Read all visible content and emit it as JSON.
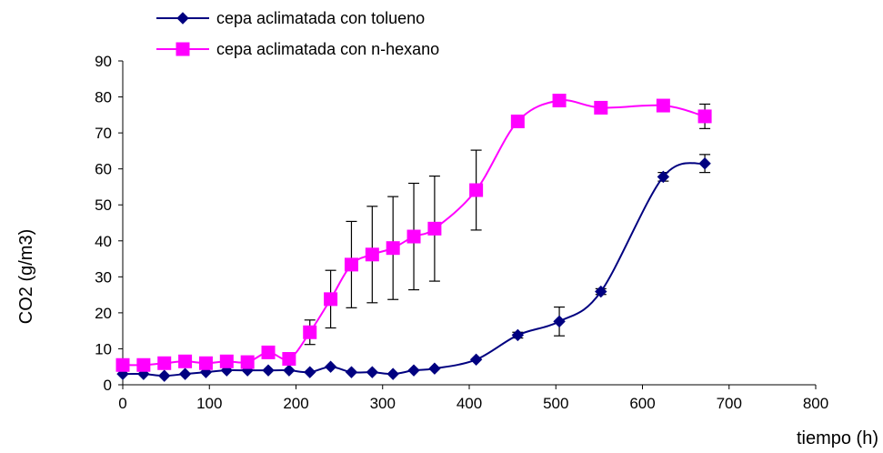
{
  "chart_data": {
    "type": "line",
    "title": "",
    "xlabel": "tiempo (h)",
    "ylabel": "CO2 (g/m3)",
    "xlim": [
      0,
      800
    ],
    "ylim": [
      0,
      90
    ],
    "x_ticks": [
      0,
      100,
      200,
      300,
      400,
      500,
      600,
      700,
      800
    ],
    "y_ticks": [
      0,
      10,
      20,
      30,
      40,
      50,
      60,
      70,
      80,
      90
    ],
    "grid": false,
    "legend_position": "top-left",
    "smooth": true,
    "series": [
      {
        "name": "cepa aclimatada con tolueno",
        "color": "#000080",
        "marker": "diamond",
        "x": [
          0,
          24,
          48,
          72,
          96,
          120,
          144,
          168,
          192,
          216,
          240,
          264,
          288,
          312,
          336,
          360,
          408,
          456,
          504,
          552,
          624,
          672
        ],
        "y": [
          3,
          3,
          2.5,
          3,
          3.5,
          4,
          4,
          4,
          4,
          3.5,
          5,
          3.5,
          3.5,
          3,
          4,
          4.5,
          7,
          13.8,
          17.6,
          25.9,
          57.8,
          61.5
        ],
        "error": [
          0,
          0,
          0,
          0,
          0,
          0,
          0,
          0,
          0,
          0,
          0,
          0,
          0,
          0,
          0,
          0,
          0,
          0.8,
          4.0,
          0.8,
          1.2,
          2.5
        ]
      },
      {
        "name": "cepa aclimatada con n-hexano",
        "color": "#ff00ff",
        "marker": "square",
        "x": [
          0,
          24,
          48,
          72,
          96,
          120,
          144,
          168,
          192,
          216,
          240,
          264,
          288,
          312,
          336,
          360,
          408,
          456,
          504,
          552,
          624,
          672
        ],
        "y": [
          5.5,
          5.5,
          6,
          6.5,
          6,
          6.5,
          6.3,
          9,
          7.2,
          14.6,
          23.8,
          33.4,
          36.2,
          38,
          41.2,
          43.4,
          54.1,
          73.2,
          79,
          77,
          77.6,
          74.6
        ],
        "error": [
          0,
          0,
          0,
          0,
          0,
          0,
          0,
          0,
          0,
          3.4,
          8,
          12,
          13.4,
          14.3,
          14.8,
          14.6,
          11.1,
          1.5,
          0,
          0,
          0,
          3.4
        ]
      }
    ]
  }
}
